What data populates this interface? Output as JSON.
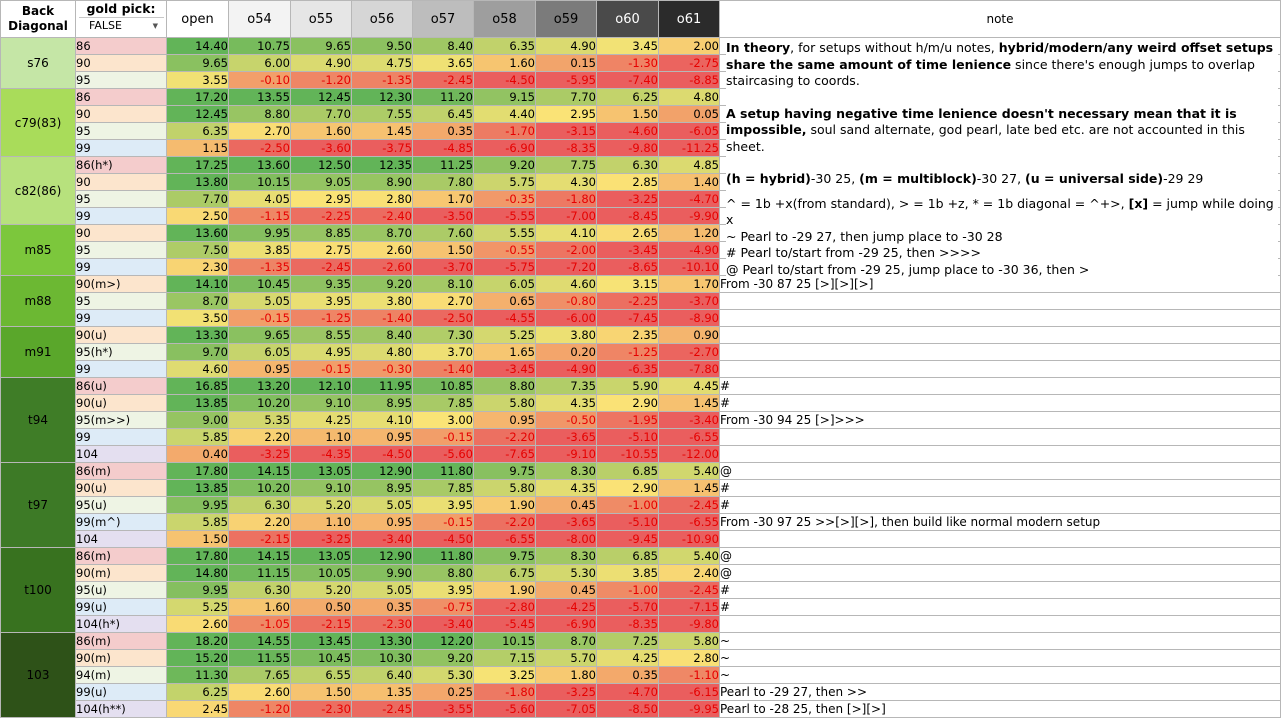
{
  "header": {
    "back_diagonal_l1": "Back",
    "back_diagonal_l2": "Diagonal",
    "gold_pick_label": "gold pick:",
    "gold_pick_value": "FALSE",
    "columns": [
      "open",
      "o54",
      "o55",
      "o56",
      "o57",
      "o58",
      "o59",
      "o60",
      "o61"
    ],
    "column_colors": [
      "#ffffff",
      "#f3f3f3",
      "#e6e6e6",
      "#d6d6d6",
      "#bdbdbd",
      "#9e9e9e",
      "#7b7b7b",
      "#4a4a4a",
      "#2b2b2b"
    ],
    "column_text_colors": [
      "#000000",
      "#000000",
      "#000000",
      "#000000",
      "#000000",
      "#000000",
      "#000000",
      "#ffffff",
      "#ffffff"
    ],
    "note_label": "note"
  },
  "notes_block": {
    "p1_b1": "In theory",
    "p1_t1": ", for setups without h/m/u notes, ",
    "p1_b2": "hybrid/modern/any weird offset setups share the same amount of time lenience",
    "p1_t2": " since there's enough jumps to overlap staircasing to coords.",
    "p2_b1": "A setup having negative time lenience doesn't necessary mean that it is impossible,",
    "p2_t1": " soul sand alternate, god pearl, late bed etc. are not accounted in this sheet.",
    "p3_b1": "(h = hybrid)",
    "p3_t1": "-30 25, ",
    "p3_b2": "(m = multiblock)",
    "p3_t2": "-30 27, ",
    "p3_b3": "(u = universal side)",
    "p3_t3": "-29 29",
    "p4_t1": "^ = 1b +x(from standard), > = 1b +z, * = 1b diagonal = ^+>,  ",
    "p4_b1": "[x]",
    "p4_t2": " = jump while doing x",
    "p5": "~ Pearl to -29 27, then jump place to -30 28",
    "p6": "# Pearl to/start from -29 25, then >>>>",
    "p7": "@ Pearl to/start from -29 25, jump place to -30 36, then >"
  },
  "groups": [
    {
      "name": "s76",
      "color": "#c5e6a6",
      "rows": [
        {
          "label": "86",
          "lc": "#f4cccc",
          "v": [
            "14.40",
            "10.75",
            "9.65",
            "9.50",
            "8.40",
            "6.35",
            "4.90",
            "3.45",
            "2.00"
          ],
          "note": ""
        },
        {
          "label": "90",
          "lc": "#fce5cd",
          "v": [
            "9.65",
            "6.00",
            "4.90",
            "4.75",
            "3.65",
            "1.60",
            "0.15",
            "-1.30",
            "-2.75"
          ],
          "note": ""
        },
        {
          "label": "95",
          "lc": "#eef4e4",
          "v": [
            "3.55",
            "-0.10",
            "-1.20",
            "-1.35",
            "-2.45",
            "-4.50",
            "-5.95",
            "-7.40",
            "-8.85"
          ],
          "note": ""
        }
      ]
    },
    {
      "name": "c79(83)",
      "color": "#a9dc5a",
      "rows": [
        {
          "label": "86",
          "lc": "#f4cccc",
          "v": [
            "17.20",
            "13.55",
            "12.45",
            "12.30",
            "11.20",
            "9.15",
            "7.70",
            "6.25",
            "4.80"
          ],
          "note": ""
        },
        {
          "label": "90",
          "lc": "#fce5cd",
          "v": [
            "12.45",
            "8.80",
            "7.70",
            "7.55",
            "6.45",
            "4.40",
            "2.95",
            "1.50",
            "0.05"
          ],
          "note": ""
        },
        {
          "label": "95",
          "lc": "#eef4e4",
          "v": [
            "6.35",
            "2.70",
            "1.60",
            "1.45",
            "0.35",
            "-1.70",
            "-3.15",
            "-4.60",
            "-6.05"
          ],
          "note": ""
        },
        {
          "label": "99",
          "lc": "#ddebf7",
          "v": [
            "1.15",
            "-2.50",
            "-3.60",
            "-3.75",
            "-4.85",
            "-6.90",
            "-8.35",
            "-9.80",
            "-11.25"
          ],
          "note": ""
        }
      ]
    },
    {
      "name": "c82(86)",
      "color": "#b7e17d",
      "rows": [
        {
          "label": "86(h*)",
          "lc": "#f4cccc",
          "v": [
            "17.25",
            "13.60",
            "12.50",
            "12.35",
            "11.25",
            "9.20",
            "7.75",
            "6.30",
            "4.85"
          ],
          "note": ""
        },
        {
          "label": "90",
          "lc": "#fce5cd",
          "v": [
            "13.80",
            "10.15",
            "9.05",
            "8.90",
            "7.80",
            "5.75",
            "4.30",
            "2.85",
            "1.40"
          ],
          "note": ""
        },
        {
          "label": "95",
          "lc": "#eef4e4",
          "v": [
            "7.70",
            "4.05",
            "2.95",
            "2.80",
            "1.70",
            "-0.35",
            "-1.80",
            "-3.25",
            "-4.70"
          ],
          "note": ""
        },
        {
          "label": "99",
          "lc": "#ddebf7",
          "v": [
            "2.50",
            "-1.15",
            "-2.25",
            "-2.40",
            "-3.50",
            "-5.55",
            "-7.00",
            "-8.45",
            "-9.90"
          ],
          "note": ""
        }
      ]
    },
    {
      "name": "m85",
      "color": "#7cc73c",
      "rows": [
        {
          "label": "90",
          "lc": "#fce5cd",
          "v": [
            "13.60",
            "9.95",
            "8.85",
            "8.70",
            "7.60",
            "5.55",
            "4.10",
            "2.65",
            "1.20"
          ],
          "note": ""
        },
        {
          "label": "95",
          "lc": "#eef4e4",
          "v": [
            "7.50",
            "3.85",
            "2.75",
            "2.60",
            "1.50",
            "-0.55",
            "-2.00",
            "-3.45",
            "-4.90"
          ],
          "note": ""
        },
        {
          "label": "99",
          "lc": "#ddebf7",
          "v": [
            "2.30",
            "-1.35",
            "-2.45",
            "-2.60",
            "-3.70",
            "-5.75",
            "-7.20",
            "-8.65",
            "-10.10"
          ],
          "note": ""
        }
      ]
    },
    {
      "name": "m88",
      "color": "#6cb833",
      "rows": [
        {
          "label": "90(m>)",
          "lc": "#fce5cd",
          "v": [
            "14.10",
            "10.45",
            "9.35",
            "9.20",
            "8.10",
            "6.05",
            "4.60",
            "3.15",
            "1.70"
          ],
          "note": "From -30 87 25 [>][>][>]"
        },
        {
          "label": "95",
          "lc": "#eef4e4",
          "v": [
            "8.70",
            "5.05",
            "3.95",
            "3.80",
            "2.70",
            "0.65",
            "-0.80",
            "-2.25",
            "-3.70"
          ],
          "note": ""
        },
        {
          "label": "99",
          "lc": "#ddebf7",
          "v": [
            "3.50",
            "-0.15",
            "-1.25",
            "-1.40",
            "-2.50",
            "-4.55",
            "-6.00",
            "-7.45",
            "-8.90"
          ],
          "note": ""
        }
      ]
    },
    {
      "name": "m91",
      "color": "#5aa72b",
      "rows": [
        {
          "label": "90(u)",
          "lc": "#fce5cd",
          "v": [
            "13.30",
            "9.65",
            "8.55",
            "8.40",
            "7.30",
            "5.25",
            "3.80",
            "2.35",
            "0.90"
          ],
          "note": ""
        },
        {
          "label": "95(h*)",
          "lc": "#eef4e4",
          "v": [
            "9.70",
            "6.05",
            "4.95",
            "4.80",
            "3.70",
            "1.65",
            "0.20",
            "-1.25",
            "-2.70"
          ],
          "note": ""
        },
        {
          "label": "99",
          "lc": "#ddebf7",
          "v": [
            "4.60",
            "0.95",
            "-0.15",
            "-0.30",
            "-1.40",
            "-3.45",
            "-4.90",
            "-6.35",
            "-7.80"
          ],
          "note": ""
        }
      ]
    },
    {
      "name": "t94",
      "color": "#3f7d27",
      "rows": [
        {
          "label": "86(u)",
          "lc": "#f4cccc",
          "v": [
            "16.85",
            "13.20",
            "12.10",
            "11.95",
            "10.85",
            "8.80",
            "7.35",
            "5.90",
            "4.45"
          ],
          "note": "#"
        },
        {
          "label": "90(u)",
          "lc": "#fce5cd",
          "v": [
            "13.85",
            "10.20",
            "9.10",
            "8.95",
            "7.85",
            "5.80",
            "4.35",
            "2.90",
            "1.45"
          ],
          "note": "#"
        },
        {
          "label": "95(m>>)",
          "lc": "#eef4e4",
          "v": [
            "9.00",
            "5.35",
            "4.25",
            "4.10",
            "3.00",
            "0.95",
            "-0.50",
            "-1.95",
            "-3.40"
          ],
          "note": "From -30 94 25 [>]>>>"
        },
        {
          "label": "99",
          "lc": "#ddebf7",
          "v": [
            "5.85",
            "2.20",
            "1.10",
            "0.95",
            "-0.15",
            "-2.20",
            "-3.65",
            "-5.10",
            "-6.55"
          ],
          "note": ""
        },
        {
          "label": "104",
          "lc": "#e4dff0",
          "v": [
            "0.40",
            "-3.25",
            "-4.35",
            "-4.50",
            "-5.60",
            "-7.65",
            "-9.10",
            "-10.55",
            "-12.00"
          ],
          "note": ""
        }
      ]
    },
    {
      "name": "t97",
      "color": "#3d7a26",
      "rows": [
        {
          "label": "86(m)",
          "lc": "#f4cccc",
          "v": [
            "17.80",
            "14.15",
            "13.05",
            "12.90",
            "11.80",
            "9.75",
            "8.30",
            "6.85",
            "5.40"
          ],
          "note": "@"
        },
        {
          "label": "90(u)",
          "lc": "#fce5cd",
          "v": [
            "13.85",
            "10.20",
            "9.10",
            "8.95",
            "7.85",
            "5.80",
            "4.35",
            "2.90",
            "1.45"
          ],
          "note": "#"
        },
        {
          "label": "95(u)",
          "lc": "#eef4e4",
          "v": [
            "9.95",
            "6.30",
            "5.20",
            "5.05",
            "3.95",
            "1.90",
            "0.45",
            "-1.00",
            "-2.45"
          ],
          "note": "#"
        },
        {
          "label": "99(m^)",
          "lc": "#ddebf7",
          "v": [
            "5.85",
            "2.20",
            "1.10",
            "0.95",
            "-0.15",
            "-2.20",
            "-3.65",
            "-5.10",
            "-6.55"
          ],
          "note": "From -30 97 25 >>[>][>], then build like normal modern setup"
        },
        {
          "label": "104",
          "lc": "#e4dff0",
          "v": [
            "1.50",
            "-2.15",
            "-3.25",
            "-3.40",
            "-4.50",
            "-6.55",
            "-8.00",
            "-9.45",
            "-10.90"
          ],
          "note": ""
        }
      ]
    },
    {
      "name": "t100",
      "color": "#38721f",
      "rows": [
        {
          "label": "86(m)",
          "lc": "#f4cccc",
          "v": [
            "17.80",
            "14.15",
            "13.05",
            "12.90",
            "11.80",
            "9.75",
            "8.30",
            "6.85",
            "5.40"
          ],
          "note": "@"
        },
        {
          "label": "90(m)",
          "lc": "#fce5cd",
          "v": [
            "14.80",
            "11.15",
            "10.05",
            "9.90",
            "8.80",
            "6.75",
            "5.30",
            "3.85",
            "2.40"
          ],
          "note": "@"
        },
        {
          "label": "95(u)",
          "lc": "#eef4e4",
          "v": [
            "9.95",
            "6.30",
            "5.20",
            "5.05",
            "3.95",
            "1.90",
            "0.45",
            "-1.00",
            "-2.45"
          ],
          "note": "#"
        },
        {
          "label": "99(u)",
          "lc": "#ddebf7",
          "v": [
            "5.25",
            "1.60",
            "0.50",
            "0.35",
            "-0.75",
            "-2.80",
            "-4.25",
            "-5.70",
            "-7.15"
          ],
          "note": "#"
        },
        {
          "label": "104(h*)",
          "lc": "#e4dff0",
          "v": [
            "2.60",
            "-1.05",
            "-2.15",
            "-2.30",
            "-3.40",
            "-5.45",
            "-6.90",
            "-8.35",
            "-9.80"
          ],
          "note": ""
        }
      ]
    },
    {
      "name": "103",
      "color": "#2e5218",
      "rows": [
        {
          "label": "86(m)",
          "lc": "#f4cccc",
          "v": [
            "18.20",
            "14.55",
            "13.45",
            "13.30",
            "12.20",
            "10.15",
            "8.70",
            "7.25",
            "5.80"
          ],
          "note": "~"
        },
        {
          "label": "90(m)",
          "lc": "#fce5cd",
          "v": [
            "15.20",
            "11.55",
            "10.45",
            "10.30",
            "9.20",
            "7.15",
            "5.70",
            "4.25",
            "2.80"
          ],
          "note": "~"
        },
        {
          "label": "94(m)",
          "lc": "#eef4e4",
          "v": [
            "11.30",
            "7.65",
            "6.55",
            "6.40",
            "5.30",
            "3.25",
            "1.80",
            "0.35",
            "-1.10"
          ],
          "note": "~"
        },
        {
          "label": "99(u)",
          "lc": "#ddebf7",
          "v": [
            "6.25",
            "2.60",
            "1.50",
            "1.35",
            "0.25",
            "-1.80",
            "-3.25",
            "-4.70",
            "-6.15"
          ],
          "note": "Pearl to -29 27, then >>"
        },
        {
          "label": "104(h**)",
          "lc": "#e4dff0",
          "v": [
            "2.45",
            "-1.20",
            "-2.30",
            "-2.45",
            "-3.55",
            "-5.60",
            "-7.05",
            "-8.50",
            "-9.95"
          ],
          "note": "Pearl to -28 25, then [>][>]"
        }
      ]
    }
  ]
}
